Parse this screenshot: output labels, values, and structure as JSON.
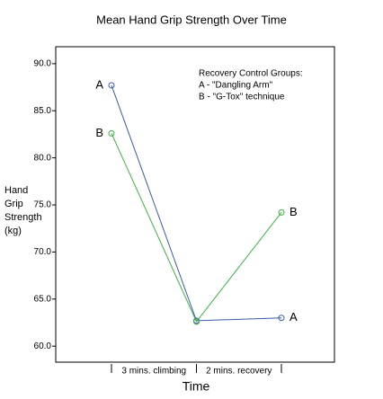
{
  "chart_data": {
    "type": "line",
    "title": "Mean Hand Grip Strength Over Time",
    "xlabel": "Time",
    "ylabel": [
      "Hand",
      "Grip",
      "Strength",
      "(kg)"
    ],
    "categories": [
      null,
      null,
      null
    ],
    "intervals": [
      "3 mins. climbing",
      "2 mins. recovery"
    ],
    "series": [
      {
        "name": "A",
        "color": "#3a5ba8",
        "values": [
          87.7,
          62.7,
          63.0
        ]
      },
      {
        "name": "B",
        "color": "#3cb043",
        "values": [
          82.6,
          62.6,
          74.2
        ]
      }
    ],
    "annotations": [
      "Recovery Control Groups:",
      "A - \"Dangling Arm\"",
      "B - \"G-Tox\" technique"
    ],
    "ylim": [
      58.3,
      91.8
    ],
    "yticks": [
      {
        "value": 60,
        "label": "60.0"
      },
      {
        "value": 65,
        "label": "65.0"
      },
      {
        "value": 70,
        "label": "70.0"
      },
      {
        "value": 75,
        "label": "75.0"
      },
      {
        "value": 80,
        "label": "80.0"
      },
      {
        "value": 85,
        "label": "85.0"
      },
      {
        "value": 90,
        "label": "90.0"
      }
    ]
  }
}
